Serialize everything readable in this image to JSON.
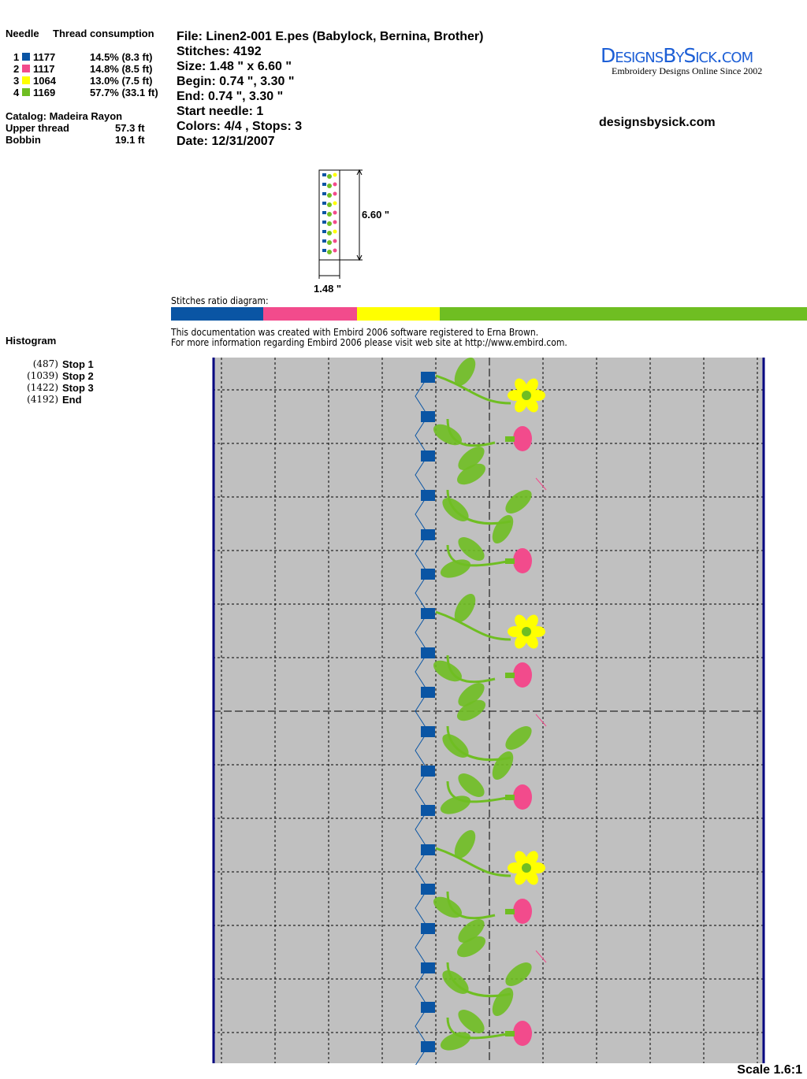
{
  "left": {
    "needle_header": "Needle",
    "thread_header": "Thread consumption",
    "threads": [
      {
        "needle": "1",
        "code": "1177",
        "consumption": "14.5% (8.3 ft)",
        "color": "#0a55a4",
        "ratio": 14.5
      },
      {
        "needle": "2",
        "code": "1117",
        "consumption": "14.8% (8.5 ft)",
        "color": "#f24b8c",
        "ratio": 14.8
      },
      {
        "needle": "3",
        "code": "1064",
        "consumption": "13.0% (7.5 ft)",
        "color": "#ffff00",
        "ratio": 13.0
      },
      {
        "needle": "4",
        "code": "1169",
        "consumption": "57.7% (33.1 ft)",
        "color": "#6fbe22",
        "ratio": 57.7
      }
    ],
    "catalog": "Catalog: Madeira Rayon",
    "upper_thread_label": "Upper thread",
    "upper_thread_value": "57.3 ft",
    "bobbin_label": "Bobbin",
    "bobbin_value": "19.1 ft",
    "histogram_title": "Histogram",
    "histogram": [
      {
        "count": "(487)",
        "label": "Stop 1"
      },
      {
        "count": "(1039)",
        "label": "Stop 2"
      },
      {
        "count": "(1422)",
        "label": "Stop 3"
      },
      {
        "count": "(4192)",
        "label": "End"
      }
    ]
  },
  "info": {
    "file": "File: Linen2-001 E.pes  (Babylock, Bernina, Brother)",
    "stitches": "Stitches: 4192",
    "size": "Size: 1.48 \" x 6.60 \"",
    "begin": "Begin: 0.74 \", 3.30 \"",
    "end": "End: 0.74 \", 3.30 \"",
    "start_needle": "Start needle: 1",
    "colors": "Colors: 4/4 , Stops: 3",
    "date": "Date: 12/31/2007"
  },
  "logo": {
    "name": "DesignsBySick.com",
    "tagline": "Embroidery Designs Online Since 2002"
  },
  "website": "designsbysick.com",
  "thumbnail": {
    "height_label": "6.60 \"",
    "width_label": "1.48 \""
  },
  "ratio_label": "Stitches ratio diagram:",
  "note_line1": "This documentation was created with Embird 2006 software registered to Erna Brown.",
  "note_line2": "For more information regarding Embird 2006 please visit web site at http://www.embird.com.",
  "scale": "Scale 1.6:1"
}
